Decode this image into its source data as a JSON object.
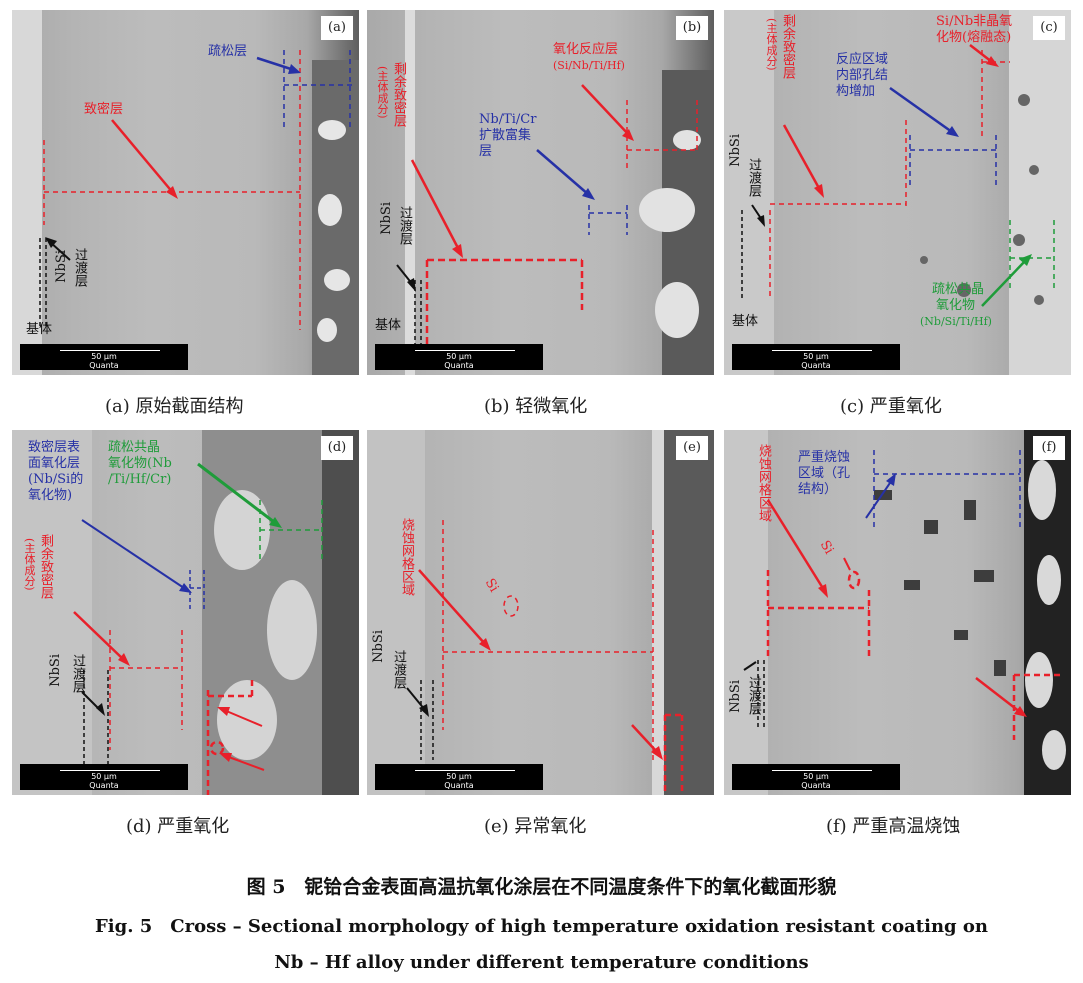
{
  "panels": [
    {
      "id": "(a)",
      "caption": "(a) 原始截面结构",
      "labels": {
        "loose": "疏松层",
        "dense": "致密层",
        "trans1": "过渡层",
        "nbsi": "NbSi",
        "substrate": "基体"
      }
    },
    {
      "id": "(b)",
      "caption": "(b) 轻微氧化",
      "labels": {
        "oxide1": "氧化反应层",
        "oxide2": "(Si/Nb/Ti/Hf)",
        "diff1": "Nb/Ti/Cr",
        "diff2": "扩散富集",
        "diff3": "层",
        "dense": "剩余致密层",
        "dense_sub": "(主体成分)",
        "trans1": "过渡层",
        "nbsi": "NbSi",
        "substrate": "基体"
      }
    },
    {
      "id": "(c)",
      "caption": "(c) 严重氧化",
      "labels": {
        "amor1": "Si/Nb非晶氧",
        "amor2": "化物(熔融态)",
        "react1": "反应区域",
        "react2": "内部孔结",
        "react3": "构增加",
        "dense": "剩余致密层",
        "dense_sub": "(主体成分)",
        "trans1": "过渡层",
        "nbsi": "NbSi",
        "loose1": "疏松共晶",
        "loose2": "氧化物",
        "loose3": "(Nb/Si/Ti/Hf)",
        "substrate": "基体"
      }
    },
    {
      "id": "(d)",
      "caption": "(d) 严重氧化",
      "labels": {
        "surf1": "致密层表",
        "surf2": "面氧化层",
        "surf3": "(Nb/Si的",
        "surf4": "氧化物)",
        "loose1": "疏松共晶",
        "loose2": "氧化物(Nb",
        "loose3": "/Ti/Hf/Cr)",
        "dense": "剩余致密层",
        "dense_sub": "(主体成分)",
        "trans1": "过渡层",
        "nbsi": "NbSi"
      }
    },
    {
      "id": "(e)",
      "caption": "(e) 异常氧化",
      "labels": {
        "ablate": "烧蚀网格区域",
        "si": "Si",
        "trans1": "过渡层",
        "nbsi": "NbSi"
      }
    },
    {
      "id": "(f)",
      "caption": "(f) 严重高温烧蚀",
      "labels": {
        "ablate": "烧蚀网格区域",
        "severe1": "严重烧蚀",
        "severe2": "区域（孔",
        "severe3": "结构）",
        "si": "Si",
        "trans1": "过渡层",
        "nbsi": "NbSi"
      }
    }
  ],
  "scalebar": {
    "length": "50 μm",
    "brand": "Quanta"
  },
  "figure": {
    "title_cn": "图 5　铌铪合金表面高温抗氧化涂层在不同温度条件下的氧化截面形貌",
    "title_en_1": "Fig. 5　Cross – Sectional morphology of high temperature oxidation resistant coating on",
    "title_en_2": "Nb – Hf alloy under different temperature conditions"
  },
  "colors": {
    "red": "#e8202a",
    "blue": "#2631a6",
    "green": "#1f9c3a"
  }
}
